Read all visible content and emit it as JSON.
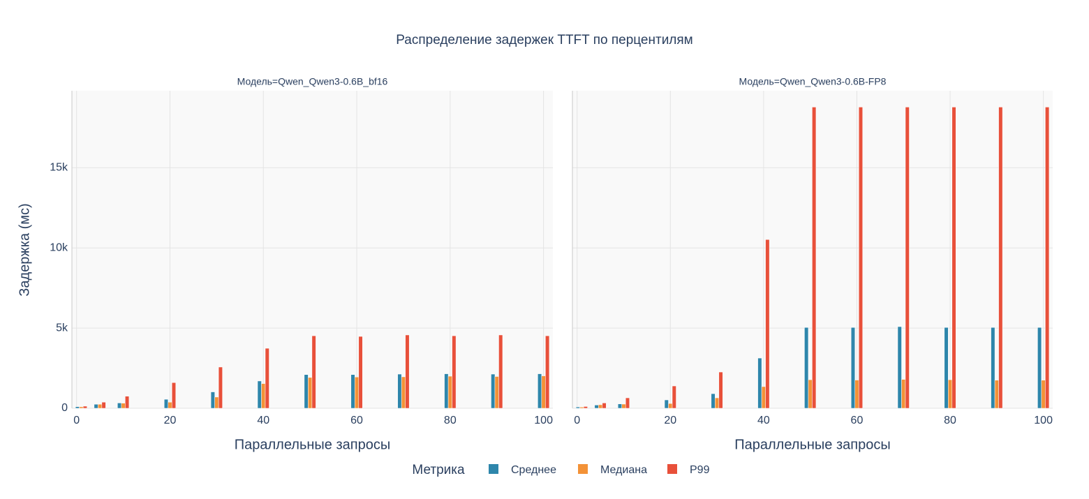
{
  "title": "Распределение задержек TTFT по перцентилям",
  "legend_title": "Метрика",
  "chart_data": [
    {
      "type": "bar",
      "title": "Модель=Qwen_Qwen3-0.6B_bf16",
      "x_label": "Параллельные запросы",
      "y_label": "Задержка (мс)",
      "x": [
        1,
        5,
        10,
        20,
        30,
        40,
        50,
        60,
        70,
        80,
        90,
        100
      ],
      "series": [
        {
          "name": "Среднее",
          "color": "#2e86ab",
          "values": [
            100,
            250,
            330,
            560,
            1020,
            1700,
            2100,
            2100,
            2130,
            2150,
            2130,
            2150
          ]
        },
        {
          "name": "Медиана",
          "color": "#f39237",
          "values": [
            90,
            250,
            320,
            380,
            700,
            1540,
            1920,
            1950,
            1960,
            2000,
            1980,
            2020
          ]
        },
        {
          "name": "P99",
          "color": "#e8503a",
          "values": [
            130,
            380,
            750,
            1600,
            2570,
            3740,
            4520,
            4480,
            4570,
            4520,
            4570,
            4520
          ]
        }
      ],
      "xlim": [
        -1,
        102
      ],
      "ylim": [
        0,
        19800
      ],
      "xticks": [
        0,
        20,
        40,
        60,
        80,
        100
      ],
      "yticks": [
        0,
        {
          "value": 5000,
          "label": "5k"
        },
        {
          "value": 10000,
          "label": "10k"
        },
        {
          "value": 15000,
          "label": "15k"
        }
      ],
      "grid": true
    },
    {
      "type": "bar",
      "title": "Модель=Qwen_Qwen3-0.6B-FP8",
      "x_label": "Параллельные запросы",
      "x": [
        1,
        5,
        10,
        20,
        30,
        40,
        50,
        60,
        70,
        80,
        90,
        100
      ],
      "series": [
        {
          "color": "#2e86ab",
          "values": [
            80,
            200,
            270,
            520,
            910,
            3130,
            5040,
            5040,
            5090,
            5040,
            5040,
            5040
          ]
        },
        {
          "color": "#f39237",
          "values": [
            70,
            220,
            260,
            300,
            650,
            1350,
            1780,
            1760,
            1800,
            1780,
            1750,
            1750
          ]
        },
        {
          "color": "#e8503a",
          "values": [
            110,
            330,
            650,
            1390,
            2260,
            10520,
            18780,
            18780,
            18780,
            18780,
            18780,
            18780
          ]
        }
      ],
      "xlim": [
        -1,
        102
      ],
      "ylim": [
        0,
        19800
      ],
      "xticks": [
        0,
        20,
        40,
        60,
        80,
        100
      ],
      "yticks": [
        0,
        5000,
        10000,
        15000
      ],
      "grid": true
    }
  ]
}
